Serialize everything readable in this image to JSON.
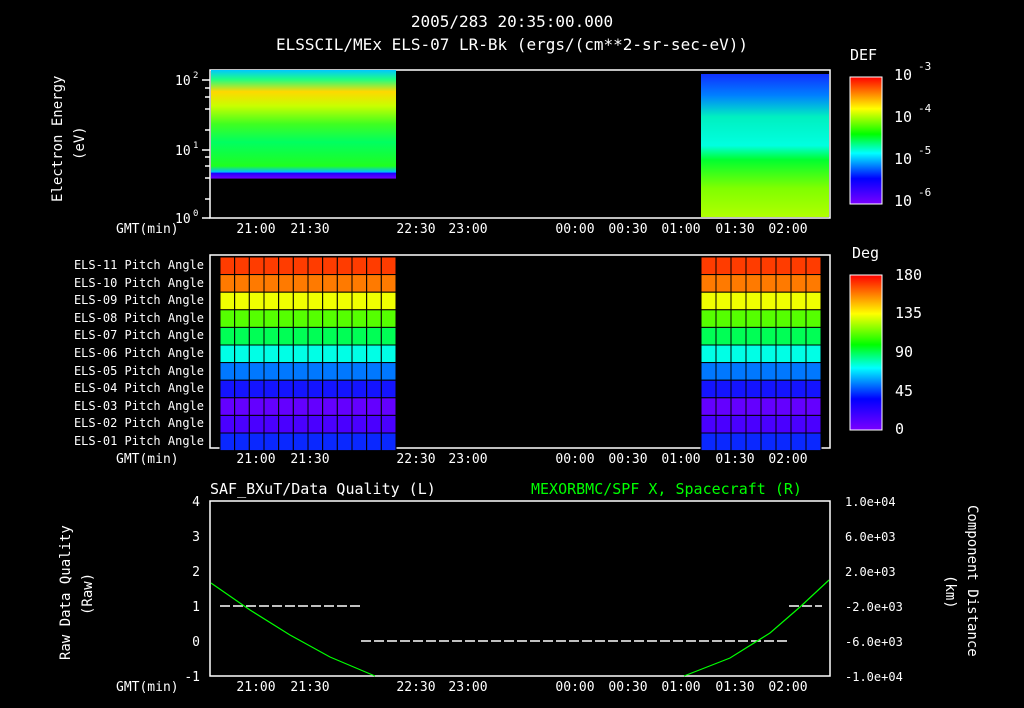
{
  "header": {
    "timestamp": "2005/283 20:35:00.000",
    "title": "ELSSCIL/MEx ELS-07 LR-Bk  (ergs/(cm**2-sr-sec-eV))"
  },
  "time_axis": {
    "label": "GMT(min)",
    "ticks": [
      "21:00",
      "21:30",
      "22:30",
      "23:00",
      "00:00",
      "00:30",
      "01:00",
      "01:30",
      "02:00"
    ]
  },
  "panel1": {
    "ylabel_line1": "Electron Energy",
    "ylabel_line2": "(eV)",
    "yticks": [
      "10",
      "10",
      "10"
    ],
    "ytick_exps": [
      "2",
      "1",
      "0"
    ],
    "colorbar": {
      "title": "DEF",
      "labels": [
        "10",
        "10",
        "10",
        "10"
      ],
      "exps": [
        "-3",
        "-4",
        "-5",
        "-6"
      ]
    }
  },
  "panel2": {
    "rows": [
      "ELS-11 Pitch Angle",
      "ELS-10 Pitch Angle",
      "ELS-09 Pitch Angle",
      "ELS-08 Pitch Angle",
      "ELS-07 Pitch Angle",
      "ELS-06 Pitch Angle",
      "ELS-05 Pitch Angle",
      "ELS-04 Pitch Angle",
      "ELS-03 Pitch Angle",
      "ELS-02 Pitch Angle",
      "ELS-01 Pitch Angle"
    ],
    "row_colors": [
      "#ff3c00",
      "#ff7a00",
      "#f0ff00",
      "#55ff00",
      "#00ff55",
      "#00ffe6",
      "#0078ff",
      "#1414ff",
      "#6400ff",
      "#4a00ff",
      "#0a28ff"
    ],
    "colorbar": {
      "title": "Deg",
      "labels": [
        "180",
        "135",
        "90",
        "45",
        "0"
      ]
    }
  },
  "panel3": {
    "left_title": "SAF_BXuT/Data Quality (L)",
    "right_title": "MEXORBMC/SPF X, Spacecraft (R)",
    "right_title_color": "#00ff00",
    "ylabel_left_line1": "Raw Data Quality",
    "ylabel_left_line2": "(Raw)",
    "ylabel_right_line1": "Component Distance",
    "ylabel_right_line2": "(km)",
    "yticks_left": [
      "4",
      "3",
      "2",
      "1",
      "0",
      "-1"
    ],
    "yticks_right": [
      "1.0e+04",
      "6.0e+03",
      "2.0e+03",
      "-2.0e+03",
      "-6.0e+03",
      "-1.0e+04"
    ]
  },
  "chart_data": [
    {
      "type": "heatmap",
      "title": "ELSSCIL/MEx ELS-07 LR-Bk (ergs/(cm**2-sr-sec-eV))",
      "xlabel": "GMT(min)",
      "ylabel": "Electron Energy (eV)",
      "yscale": "log",
      "ylim": [
        1,
        150
      ],
      "x_ticks": [
        "21:00",
        "21:30",
        "22:30",
        "23:00",
        "00:00",
        "00:30",
        "01:00",
        "01:30",
        "02:00"
      ],
      "data_intervals": [
        [
          "20:43",
          "22:15"
        ],
        [
          "01:15",
          "02:25"
        ]
      ],
      "colorbar": {
        "label": "DEF",
        "scale": "log",
        "range": [
          1e-06,
          0.001
        ]
      },
      "notes": "First interval: high flux (yellow/orange) at 30-70 eV, green 4-30 eV, cutoff below ~3.5 eV. Second interval: blue/cyan at 30-150 eV, green/yellow-green below 10 eV."
    },
    {
      "type": "heatmap",
      "title": "ELS Pitch Angle",
      "categories": [
        "ELS-11",
        "ELS-10",
        "ELS-09",
        "ELS-08",
        "ELS-07",
        "ELS-06",
        "ELS-05",
        "ELS-04",
        "ELS-03",
        "ELS-02",
        "ELS-01"
      ],
      "approx_values_deg": [
        170,
        155,
        125,
        108,
        95,
        75,
        55,
        35,
        20,
        15,
        30
      ],
      "colorbar": {
        "label": "Deg",
        "range": [
          0,
          180
        ],
        "ticks": [
          0,
          45,
          90,
          135,
          180
        ]
      },
      "data_intervals": [
        [
          "20:43",
          "22:15"
        ],
        [
          "01:15",
          "02:25"
        ]
      ]
    },
    {
      "type": "line",
      "title_left": "SAF_BXuT/Data Quality (L)",
      "title_right": "MEXORBMC/SPF X, Spacecraft (R)",
      "xlabel": "GMT(min)",
      "ylabel_left": "Raw Data Quality (Raw)",
      "ylabel_right": "Component Distance (km)",
      "ylim_left": [
        -1,
        4
      ],
      "ylim_right": [
        -10000,
        10000
      ],
      "series": [
        {
          "name": "Data Quality",
          "axis": "left",
          "color": "#ffffff",
          "segments": [
            {
              "x": [
                "20:40",
                "22:15"
              ],
              "y": 1
            },
            {
              "x": [
                "22:15",
                "02:15"
              ],
              "y": 0
            },
            {
              "x": [
                "02:15",
                "02:30"
              ],
              "y": 1
            }
          ]
        },
        {
          "name": "SPF X Spacecraft",
          "axis": "right",
          "color": "#00ff00",
          "x": [
            "20:35",
            "21:00",
            "21:30",
            "22:00",
            "22:30",
            "01:00",
            "01:30",
            "02:00",
            "02:35"
          ],
          "y": [
            800,
            -1800,
            -5000,
            -8000,
            -10000,
            -10000,
            -5600,
            -1800,
            800
          ]
        }
      ]
    }
  ]
}
